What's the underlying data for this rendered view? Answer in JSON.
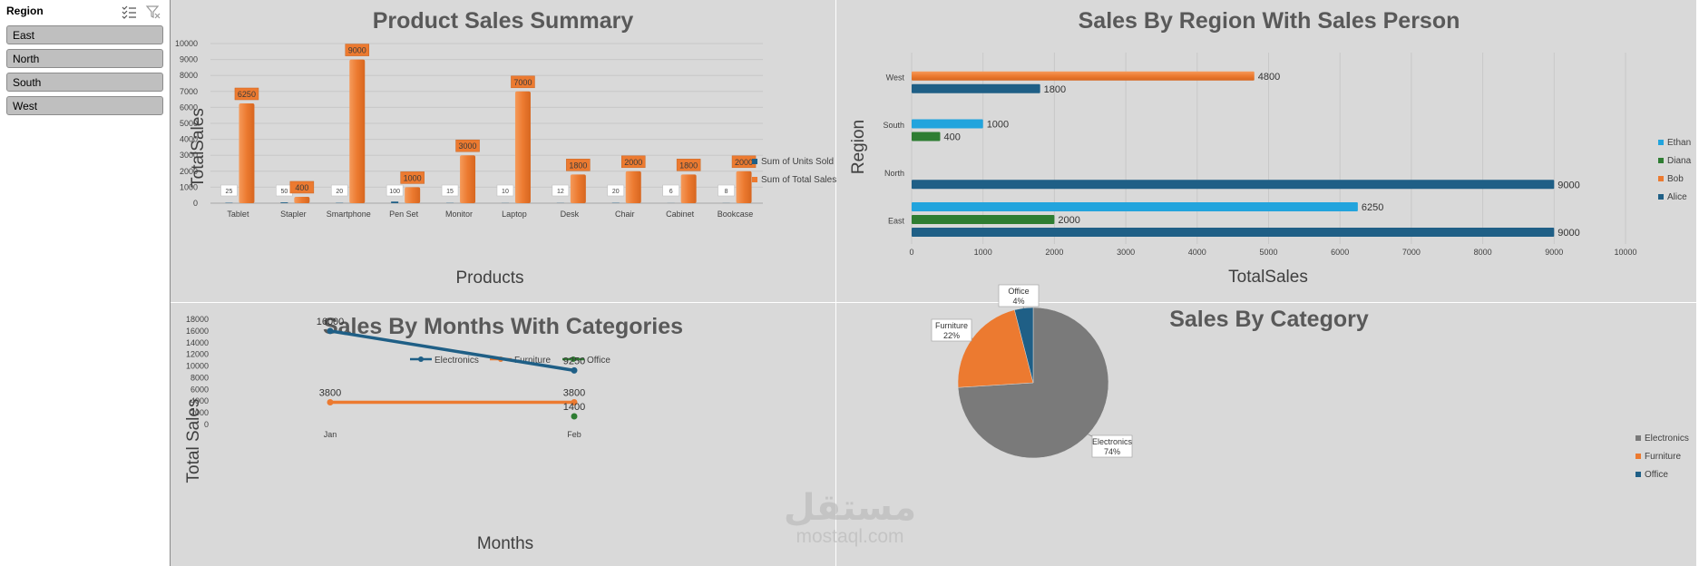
{
  "slicer": {
    "title": "Region",
    "items": [
      "East",
      "North",
      "South",
      "West"
    ]
  },
  "watermark": {
    "arabic": "مستقل",
    "latin": "mostaql.com"
  },
  "colors": {
    "orange": "#ec7a30",
    "navy": "#1f5f86",
    "sky": "#22a4dd",
    "green": "#2e7d32",
    "gray": "#7a7a7a",
    "panel": "#d9d9d9",
    "title": "#595959"
  },
  "chart_data": [
    {
      "id": "product_sales",
      "type": "bar",
      "title": "Product Sales Summary",
      "xlabel": "Products",
      "ylabel": "TotalSales",
      "ylim": [
        0,
        10000
      ],
      "yticks": [
        0,
        1000,
        2000,
        3000,
        4000,
        5000,
        6000,
        7000,
        8000,
        9000,
        10000
      ],
      "categories": [
        "Tablet",
        "Stapler",
        "Smartphone",
        "Pen Set",
        "Monitor",
        "Laptop",
        "Desk",
        "Chair",
        "Cabinet",
        "Bookcase"
      ],
      "series": [
        {
          "name": "Sum of Units Sold",
          "color": "#1f5f86",
          "values": [
            25,
            50,
            20,
            100,
            15,
            10,
            12,
            20,
            6,
            8
          ]
        },
        {
          "name": "Sum of Total Sales",
          "color": "#ec7a30",
          "values": [
            6250,
            400,
            9000,
            1000,
            3000,
            7000,
            1800,
            2000,
            1800,
            2000
          ]
        }
      ],
      "legend": "right"
    },
    {
      "id": "region_sales",
      "type": "bar",
      "orientation": "horizontal",
      "title": "Sales By Region With Sales Person",
      "xlabel": "TotalSales",
      "ylabel": "Region",
      "xlim": [
        0,
        10000
      ],
      "xticks": [
        0,
        1000,
        2000,
        3000,
        4000,
        5000,
        6000,
        7000,
        8000,
        9000,
        10000
      ],
      "categories": [
        "East",
        "North",
        "South",
        "West"
      ],
      "series": [
        {
          "name": "Alice",
          "color": "#1f5f86",
          "values": [
            9000,
            9000,
            null,
            1800
          ]
        },
        {
          "name": "Bob",
          "color": "#ec7a30",
          "values": [
            null,
            null,
            null,
            4800
          ]
        },
        {
          "name": "Diana",
          "color": "#2e7d32",
          "values": [
            2000,
            null,
            400,
            null
          ]
        },
        {
          "name": "Ethan",
          "color": "#22a4dd",
          "values": [
            6250,
            null,
            1000,
            null
          ]
        }
      ],
      "legend_order": [
        "Ethan",
        "Diana",
        "Bob",
        "Alice"
      ],
      "legend": "right"
    },
    {
      "id": "monthly_sales",
      "type": "line",
      "title": "Sales By Months With Categories",
      "xlabel": "Months",
      "ylabel": "Total Sales",
      "ylim": [
        0,
        18000
      ],
      "yticks": [
        0,
        2000,
        4000,
        6000,
        8000,
        10000,
        12000,
        14000,
        16000,
        18000
      ],
      "x": [
        "Jan",
        "Feb"
      ],
      "series": [
        {
          "name": "Electronics",
          "color": "#1f5f86",
          "values": [
            16000,
            9250
          ]
        },
        {
          "name": "Furniture",
          "color": "#ec7a30",
          "values": [
            3800,
            3800
          ]
        },
        {
          "name": "Office",
          "color": "#2e7d32",
          "values": [
            null,
            1400
          ]
        }
      ],
      "legend": "top"
    },
    {
      "id": "category_sales",
      "type": "pie",
      "title": "Sales By Category",
      "slices": [
        {
          "name": "Electronics",
          "value": 74,
          "label": "74%",
          "color": "#7a7a7a"
        },
        {
          "name": "Furniture",
          "value": 22,
          "label": "22%",
          "color": "#ec7a30"
        },
        {
          "name": "Office",
          "value": 4,
          "label": "4%",
          "color": "#1f5f86"
        }
      ],
      "legend": "right"
    }
  ]
}
